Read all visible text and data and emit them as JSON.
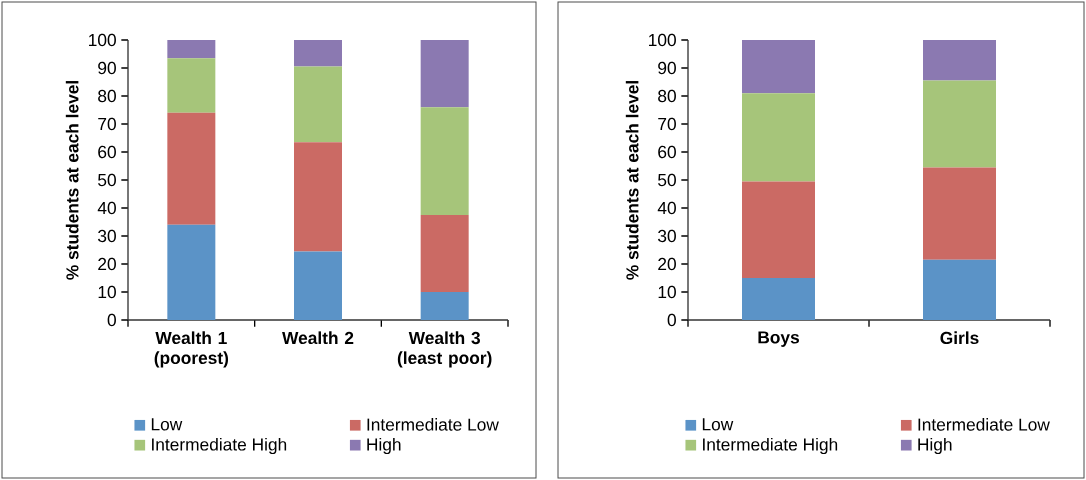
{
  "chart_data": [
    {
      "type": "bar",
      "stacked": true,
      "ylabel": "% students at each level",
      "categories": [
        "Wealth 1 (poorest)",
        "Wealth 2",
        "Wealth 3 (least poor)"
      ],
      "ylim": [
        0,
        100
      ],
      "yticks": [
        0,
        10,
        20,
        30,
        40,
        50,
        60,
        70,
        80,
        90,
        100
      ],
      "legend": "bottom",
      "grid": false,
      "series": [
        {
          "name": "Low",
          "color": "#5b93c7",
          "values": [
            34,
            24.5,
            10
          ]
        },
        {
          "name": "Intermediate Low",
          "color": "#cb6a64",
          "values": [
            40,
            39,
            27.5
          ]
        },
        {
          "name": "Intermediate High",
          "color": "#a6c57a",
          "values": [
            19.5,
            27,
            38.5
          ]
        },
        {
          "name": "High",
          "color": "#8b79b1",
          "values": [
            6.5,
            9.5,
            24
          ]
        }
      ]
    },
    {
      "type": "bar",
      "stacked": true,
      "ylabel": "% students at each level",
      "categories": [
        "Boys",
        "Girls"
      ],
      "ylim": [
        0,
        100
      ],
      "yticks": [
        0,
        10,
        20,
        30,
        40,
        50,
        60,
        70,
        80,
        90,
        100
      ],
      "legend": "bottom",
      "grid": false,
      "series": [
        {
          "name": "Low",
          "color": "#5b93c7",
          "values": [
            15,
            21.5
          ]
        },
        {
          "name": "Intermediate Low",
          "color": "#cb6a64",
          "values": [
            34.5,
            33
          ]
        },
        {
          "name": "Intermediate High",
          "color": "#a6c57a",
          "values": [
            31.5,
            31
          ]
        },
        {
          "name": "High",
          "color": "#8b79b1",
          "values": [
            19,
            14.5
          ]
        }
      ]
    }
  ]
}
